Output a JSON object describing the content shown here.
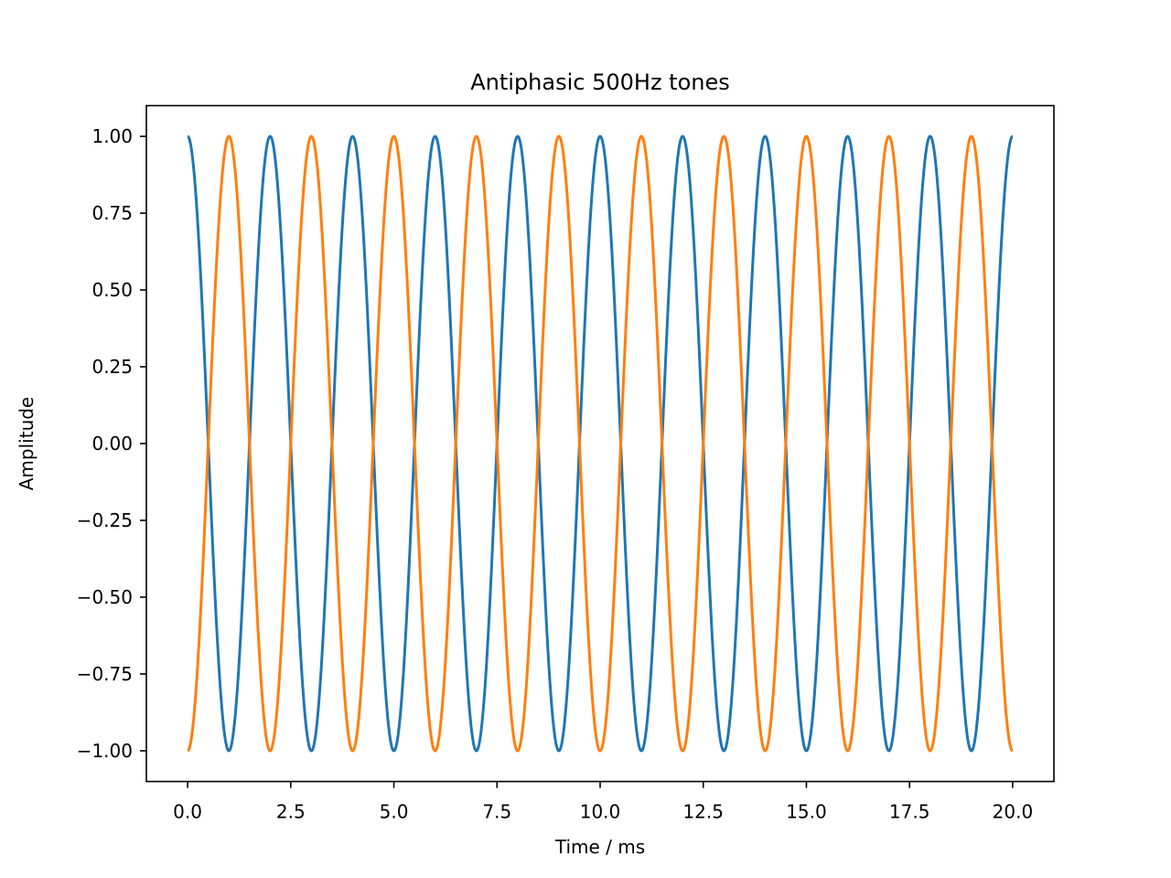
{
  "chart_data": {
    "type": "line",
    "title": "Antiphasic 500Hz tones",
    "xlabel": "Time / ms",
    "ylabel": "Amplitude",
    "xlim": [
      -1.0,
      21.0
    ],
    "ylim": [
      -1.1,
      1.1
    ],
    "x_ticks": [
      0.0,
      2.5,
      5.0,
      7.5,
      10.0,
      12.5,
      15.0,
      17.5,
      20.0
    ],
    "x_tick_labels": [
      "0.0",
      "2.5",
      "5.0",
      "7.5",
      "10.0",
      "12.5",
      "15.0",
      "17.5",
      "20.0"
    ],
    "y_ticks": [
      1.0,
      0.75,
      0.5,
      0.25,
      0.0,
      -0.25,
      -0.5,
      -0.75,
      -1.0
    ],
    "y_tick_labels": [
      "1.00",
      "0.75",
      "0.50",
      "0.25",
      "0.00",
      "−0.25",
      "−0.50",
      "−0.75",
      "−1.00"
    ],
    "grid": false,
    "series": [
      {
        "color": "#1f77b4",
        "function": "cos(2*pi*0.5*t)",
        "x_start": 0.0,
        "x_end": 20.0,
        "peaks": [
          [
            0,
            1
          ],
          [
            1,
            -1
          ],
          [
            2,
            1
          ],
          [
            3,
            -1
          ],
          [
            4,
            1
          ],
          [
            5,
            -1
          ],
          [
            6,
            1
          ],
          [
            7,
            -1
          ],
          [
            8,
            1
          ],
          [
            9,
            -1
          ],
          [
            10,
            1
          ],
          [
            11,
            -1
          ],
          [
            12,
            1
          ],
          [
            13,
            -1
          ],
          [
            14,
            1
          ],
          [
            15,
            -1
          ],
          [
            16,
            1
          ],
          [
            17,
            -1
          ],
          [
            18,
            1
          ],
          [
            19,
            -1
          ],
          [
            20,
            1
          ]
        ]
      },
      {
        "color": "#ff7f0e",
        "function": "-cos(2*pi*0.5*t)",
        "x_start": 0.0,
        "x_end": 20.0,
        "peaks": [
          [
            0,
            -1
          ],
          [
            1,
            1
          ],
          [
            2,
            -1
          ],
          [
            3,
            1
          ],
          [
            4,
            -1
          ],
          [
            5,
            1
          ],
          [
            6,
            -1
          ],
          [
            7,
            1
          ],
          [
            8,
            -1
          ],
          [
            9,
            1
          ],
          [
            10,
            -1
          ],
          [
            11,
            1
          ],
          [
            12,
            -1
          ],
          [
            13,
            1
          ],
          [
            14,
            -1
          ],
          [
            15,
            1
          ],
          [
            16,
            -1
          ],
          [
            17,
            1
          ],
          [
            18,
            -1
          ],
          [
            19,
            1
          ],
          [
            20,
            -1
          ]
        ]
      }
    ]
  }
}
